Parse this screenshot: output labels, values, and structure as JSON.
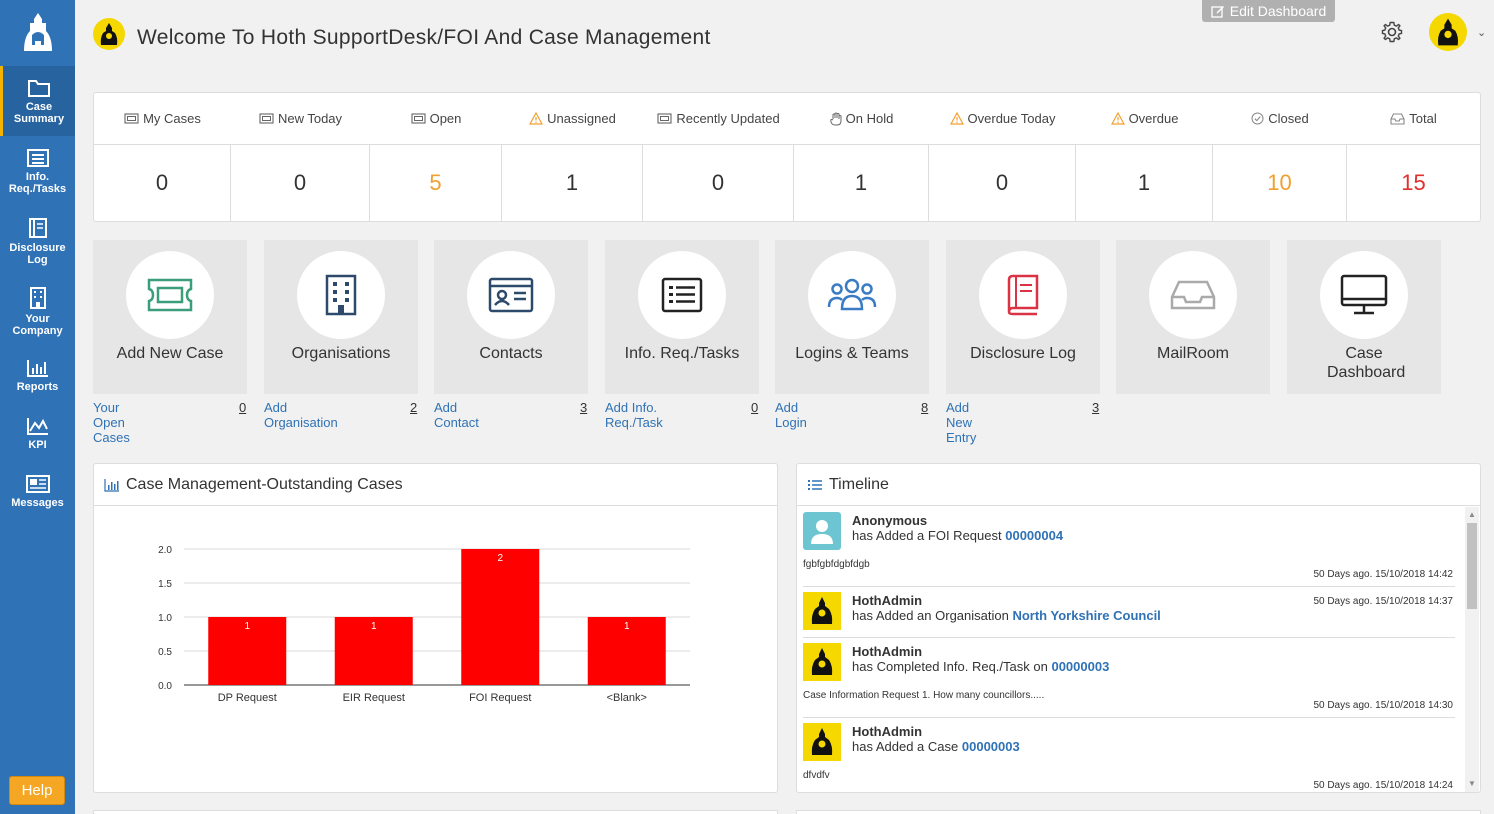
{
  "header": {
    "title": "Welcome To Hoth SupportDesk/FOI And Case Management",
    "edit_dashboard": "Edit Dashboard"
  },
  "sidebar": {
    "items": [
      {
        "label": "Case Summary",
        "icon": "folder-icon"
      },
      {
        "label": "Info. Req./Tasks",
        "icon": "list-icon"
      },
      {
        "label": "Disclosure Log",
        "icon": "book-icon"
      },
      {
        "label": "Your Company",
        "icon": "building-icon"
      },
      {
        "label": "Reports",
        "icon": "bar-chart-icon"
      },
      {
        "label": "KPI",
        "icon": "area-chart-icon"
      },
      {
        "label": "Messages",
        "icon": "newspaper-icon"
      }
    ],
    "help": "Help"
  },
  "stats": [
    {
      "label": "My Cases",
      "value": "0",
      "color": "#333333"
    },
    {
      "label": "New Today",
      "value": "0",
      "color": "#333333"
    },
    {
      "label": "Open",
      "value": "5",
      "color": "#f0a030"
    },
    {
      "label": "Unassigned",
      "value": "1",
      "color": "#333333"
    },
    {
      "label": "Recently Updated",
      "value": "0",
      "color": "#333333"
    },
    {
      "label": "On Hold",
      "value": "1",
      "color": "#333333"
    },
    {
      "label": "Overdue Today",
      "value": "0",
      "color": "#333333"
    },
    {
      "label": "Overdue",
      "value": "1",
      "color": "#333333"
    },
    {
      "label": "Closed",
      "value": "10",
      "color": "#f0a030"
    },
    {
      "label": "Total",
      "value": "15",
      "color": "#e03030"
    }
  ],
  "tiles": [
    {
      "label": "Add New Case",
      "link": "Your Open Cases",
      "count": "0"
    },
    {
      "label": "Organisations",
      "link": "Add Organisation",
      "count": "2"
    },
    {
      "label": "Contacts",
      "link": "Add Contact",
      "count": "3"
    },
    {
      "label": "Info. Req./Tasks",
      "link": "Add Info. Req./Task",
      "count": "0"
    },
    {
      "label": "Logins & Teams",
      "link": "Add Login",
      "count": "8"
    },
    {
      "label": "Disclosure Log",
      "link": "Add New Entry",
      "count": "3"
    },
    {
      "label": "MailRoom",
      "link": "",
      "count": ""
    },
    {
      "label": "Case Dashboard",
      "link": "",
      "count": ""
    }
  ],
  "chart_panel": {
    "title": "Case Management-Outstanding Cases"
  },
  "chart_data": {
    "type": "bar",
    "categories": [
      "DP Request",
      "EIR Request",
      "FOI Request",
      "<Blank>"
    ],
    "values": [
      1,
      1,
      2,
      1
    ],
    "title": "",
    "xlabel": "",
    "ylabel": "",
    "ylim": [
      0,
      2
    ],
    "yticks": [
      "0.0",
      "0.5",
      "1.0",
      "1.5",
      "2.0"
    ],
    "bar_color": "#ff0000",
    "grid": true
  },
  "timeline": {
    "title": "Timeline",
    "entries": [
      {
        "name": "Anonymous",
        "action": "has Added a FOI Request",
        "ref": "00000004",
        "note": "fgbfgbfdgbfdgb",
        "time": "50 Days ago. 15/10/2018 14:42"
      },
      {
        "name": "HothAdmin",
        "action": "has Added an Organisation",
        "ref": "North Yorkshire Council",
        "note": "",
        "time": "50 Days ago. 15/10/2018 14:37"
      },
      {
        "name": "HothAdmin",
        "action": "has Completed Info. Req./Task on",
        "ref": "00000003",
        "note": "Case Information Request 1. How many councillors.....",
        "time": "50 Days ago. 15/10/2018 14:30"
      },
      {
        "name": "HothAdmin",
        "action": "has Added a Case",
        "ref": "00000003",
        "note": "dfvdfv",
        "time": "50 Days ago. 15/10/2018 14:24"
      }
    ]
  }
}
